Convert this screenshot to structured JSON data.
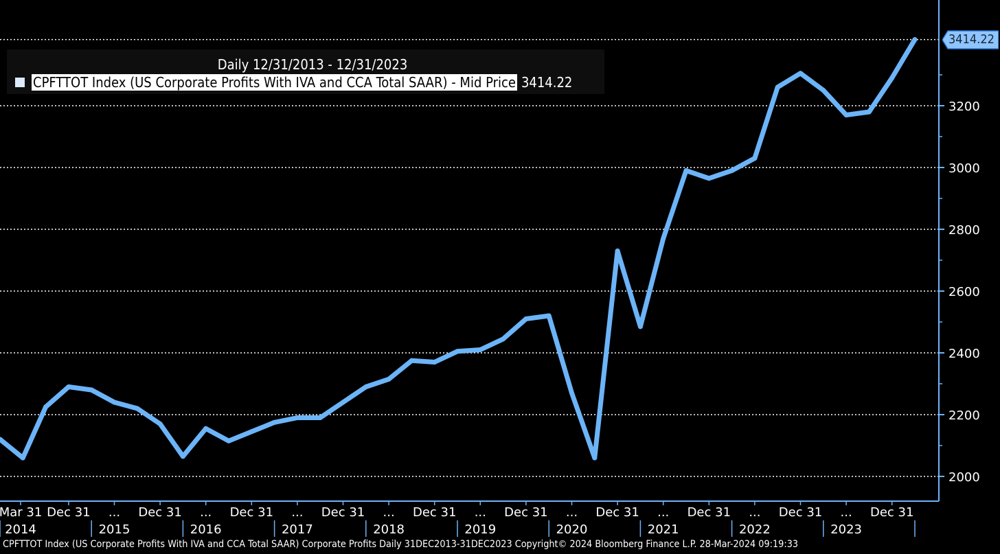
{
  "legend": {
    "header": "Daily 12/31/2013 - 12/31/2023",
    "series_label": "CPFTTOT Index (US Corporate Profits With IVA and CCA Total SAAR) - Mid Price",
    "last_value": "3414.22"
  },
  "last_price_tag": "3414.22",
  "footer": "CPFTTOT Index (US Corporate Profits With IVA and CCA Total SAAR) Corporate Profits  Daily 31DEC2013-31DEC2023  Copyright© 2024 Bloomberg Finance L.P.  28-Mar-2024 09:19:33",
  "colors": {
    "background": "#000000",
    "line": "#6cb4f8",
    "axis": "#6cb4f8",
    "grid": "#ffffff",
    "tag": "#8ec5ff"
  },
  "chart_data": {
    "type": "line",
    "ylim": [
      1960,
      3480
    ],
    "yticks": [
      2000,
      2200,
      2400,
      2600,
      2800,
      3000,
      3200
    ],
    "grid": "dotted horizontal",
    "legend_position": "top-left",
    "x_axis_labels": [
      {
        "q": 0.9,
        "top": "Mar 31",
        "bottom": "2014"
      },
      {
        "q": 3,
        "top": "Dec 31",
        "bottom": ""
      },
      {
        "q": 5,
        "top": "...",
        "bottom": "2015"
      },
      {
        "q": 7,
        "top": "Dec 31",
        "bottom": ""
      },
      {
        "q": 9,
        "top": "...",
        "bottom": "2016"
      },
      {
        "q": 11,
        "top": "Dec 31",
        "bottom": ""
      },
      {
        "q": 13,
        "top": "...",
        "bottom": "2017"
      },
      {
        "q": 15,
        "top": "Dec 31",
        "bottom": ""
      },
      {
        "q": 17,
        "top": "...",
        "bottom": "2018"
      },
      {
        "q": 19,
        "top": "Dec 31",
        "bottom": ""
      },
      {
        "q": 21,
        "top": "...",
        "bottom": "2019"
      },
      {
        "q": 23,
        "top": "Dec 31",
        "bottom": ""
      },
      {
        "q": 25,
        "top": "...",
        "bottom": "2020"
      },
      {
        "q": 27,
        "top": "Dec 31",
        "bottom": ""
      },
      {
        "q": 29,
        "top": "...",
        "bottom": "2021"
      },
      {
        "q": 31,
        "top": "Dec 31",
        "bottom": ""
      },
      {
        "q": 33,
        "top": "...",
        "bottom": "2022"
      },
      {
        "q": 35,
        "top": "Dec 31",
        "bottom": ""
      },
      {
        "q": 37,
        "top": "...",
        "bottom": "2023"
      },
      {
        "q": 39,
        "top": "Dec 31",
        "bottom": ""
      }
    ],
    "series": [
      {
        "values": [
          2120,
          2060,
          2225,
          2290,
          2280,
          2240,
          2220,
          2170,
          2065,
          2155,
          2115,
          2145,
          2175,
          2190,
          2190,
          2240,
          2290,
          2315,
          2375,
          2370,
          2405,
          2410,
          2445,
          2510,
          2520,
          2270,
          2060,
          2730,
          2485,
          2770,
          2990,
          2965,
          2990,
          3030,
          3260,
          3305,
          3250,
          3170,
          3180,
          3290,
          3414.22
        ]
      }
    ]
  }
}
